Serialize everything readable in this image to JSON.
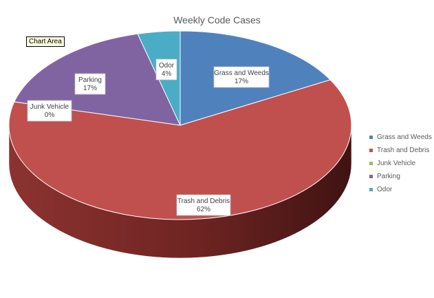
{
  "chart_area_tooltip": "Chart Area",
  "chart_data": {
    "type": "pie",
    "title": "Weekly Code Cases",
    "labels": [
      "Grass and Weeds",
      "Trash and Debris",
      "Junk Vehicle",
      "Parking",
      "Odor"
    ],
    "values": [
      17,
      62,
      0,
      17,
      4
    ],
    "percent_labels": [
      "17%",
      "62%",
      "0%",
      "17%",
      "4%"
    ],
    "colors": [
      "#4f81bd",
      "#c0504d",
      "#9bbb59",
      "#8064a2",
      "#4bacc6"
    ],
    "legend_position": "right",
    "style": "3d"
  }
}
